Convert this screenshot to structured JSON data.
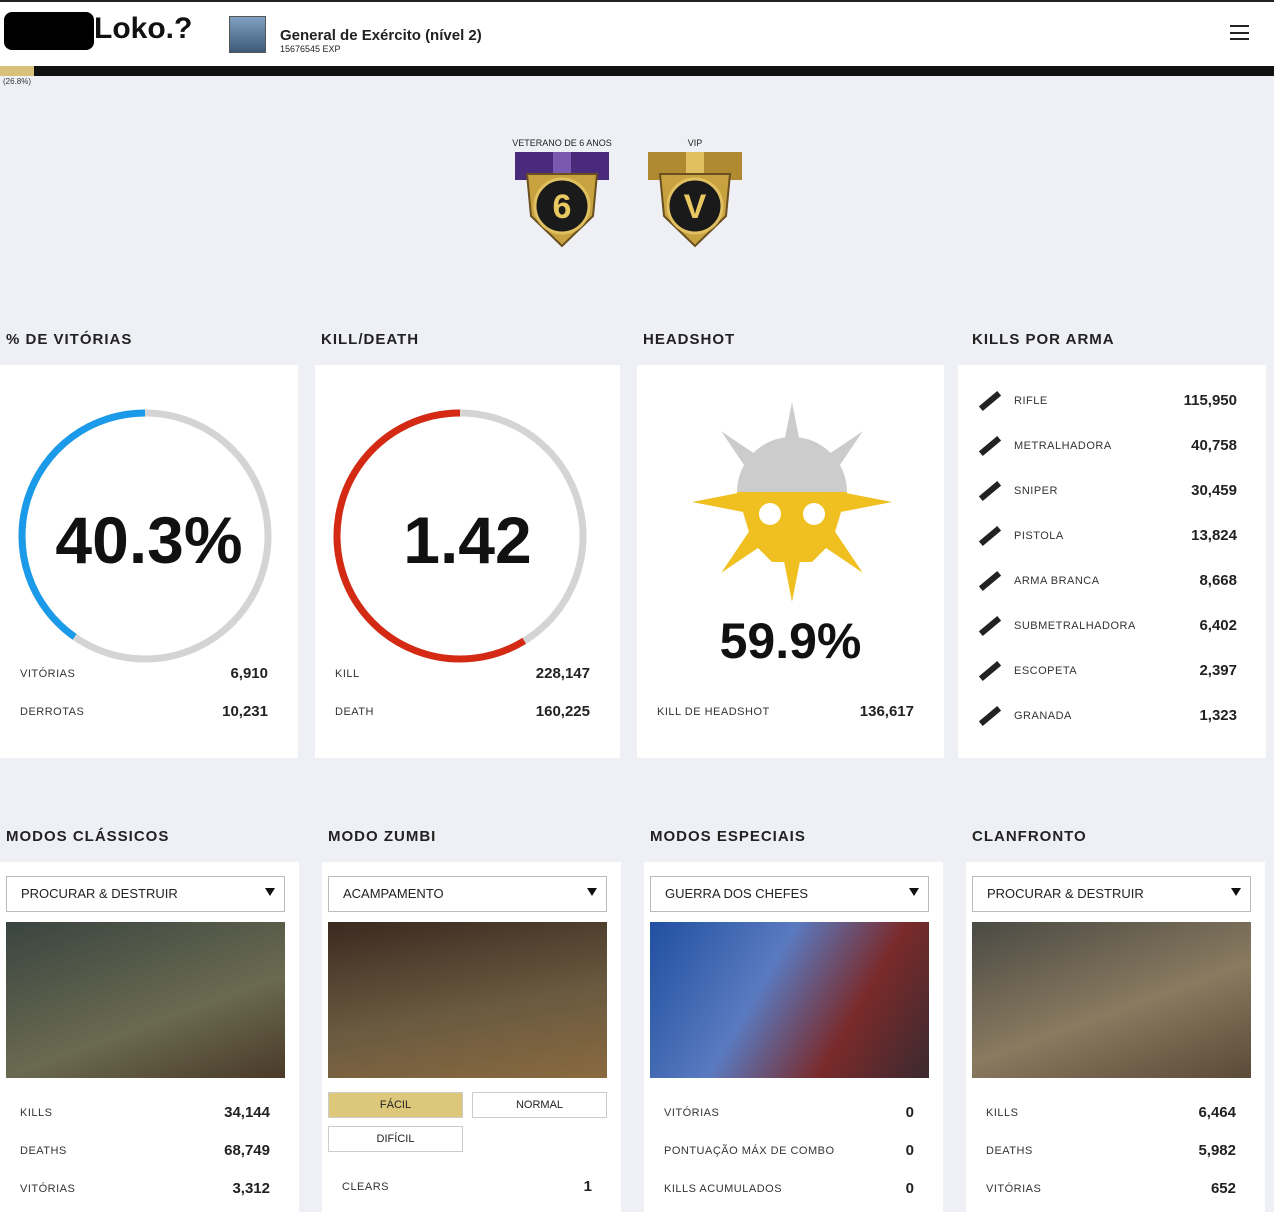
{
  "header": {
    "name": "Loko.?",
    "rank": "General de Exército (nível 2)",
    "exp": "15676545 EXP",
    "progress": "(26.8%)"
  },
  "medals": [
    {
      "label": "VETERANO DE 6 ANOS",
      "badge": "6"
    },
    {
      "label": "VIP",
      "badge": "V"
    }
  ],
  "panels": [
    {
      "title": "% DE VITÓRIAS",
      "big": "40.3%",
      "rows": [
        {
          "label": "VITÓRIAS",
          "value": "6,910"
        },
        {
          "label": "DERROTAS",
          "value": "10,231"
        }
      ]
    },
    {
      "title": "KILL/DEATH",
      "big": "1.42",
      "rows": [
        {
          "label": "KILL",
          "value": "228,147"
        },
        {
          "label": "DEATH",
          "value": "160,225"
        }
      ]
    },
    {
      "title": "HEADSHOT",
      "big": "59.9%",
      "rows": [
        {
          "label": "KILL DE HEADSHOT",
          "value": "136,617"
        }
      ]
    }
  ],
  "weapons": {
    "title": "KILLS POR ARMA",
    "rows": [
      {
        "label": "RIFLE",
        "value": "115,950"
      },
      {
        "label": "METRALHADORA",
        "value": "40,758"
      },
      {
        "label": "SNIPER",
        "value": "30,459"
      },
      {
        "label": "PISTOLA",
        "value": "13,824"
      },
      {
        "label": "ARMA BRANCA",
        "value": "8,668"
      },
      {
        "label": "SUBMETRALHADORA",
        "value": "6,402"
      },
      {
        "label": "ESCOPETA",
        "value": "2,397"
      },
      {
        "label": "GRANADA",
        "value": "1,323"
      }
    ]
  },
  "modes": [
    {
      "title": "MODOS CLÁSSICOS",
      "select": "PROCURAR & DESTRUIR",
      "rows": [
        {
          "label": "KILLS",
          "value": "34,144"
        },
        {
          "label": "DEATHS",
          "value": "68,749"
        },
        {
          "label": "VITÓRIAS",
          "value": "3,312"
        }
      ]
    },
    {
      "title": "MODO ZUMBI",
      "select": "ACAMPAMENTO",
      "buttons": [
        "FÁCIL",
        "NORMAL",
        "DIFÍCIL"
      ],
      "rows": [
        {
          "label": "CLEARS",
          "value": "1"
        }
      ]
    },
    {
      "title": "MODOS ESPECIAIS",
      "select": "GUERRA DOS CHEFES",
      "rows": [
        {
          "label": "VITÓRIAS",
          "value": "0"
        },
        {
          "label": "PONTUAÇÃO MÁX DE COMBO",
          "value": "0"
        },
        {
          "label": "KILLS ACUMULADOS",
          "value": "0"
        }
      ]
    },
    {
      "title": "CLANFRONTO",
      "select": "PROCURAR & DESTRUIR",
      "rows": [
        {
          "label": "KILLS",
          "value": "6,464"
        },
        {
          "label": "DEATHS",
          "value": "5,982"
        },
        {
          "label": "VITÓRIAS",
          "value": "652"
        }
      ]
    }
  ]
}
